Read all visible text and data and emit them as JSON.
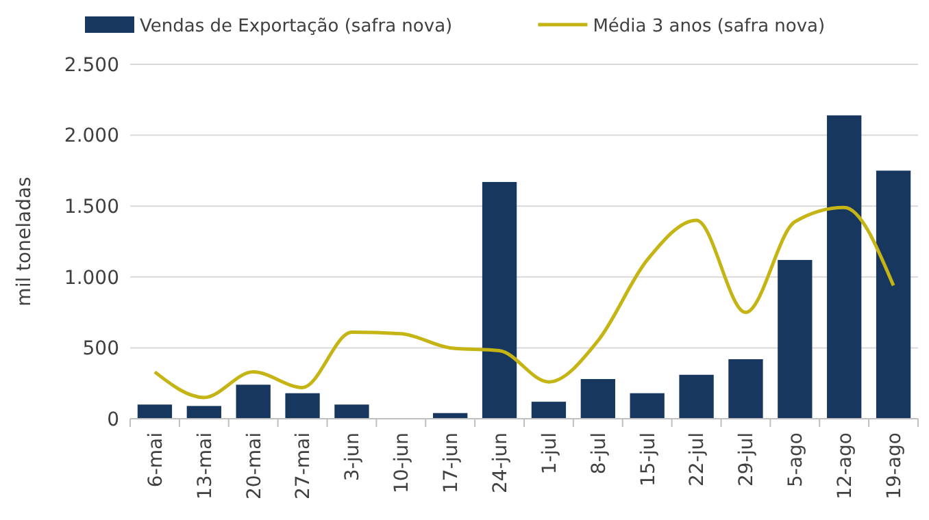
{
  "chart_data": {
    "type": "bar",
    "ylabel": "mil toneladas",
    "categories": [
      "6-mai",
      "13-mai",
      "20-mai",
      "27-mai",
      "3-jun",
      "10-jun",
      "17-jun",
      "24-jun",
      "1-jul",
      "8-jul",
      "15-jul",
      "22-jul",
      "29-jul",
      "5-ago",
      "12-ago",
      "19-ago"
    ],
    "series": [
      {
        "name": "Vendas de Exportação (safra nova)",
        "color": "#17375e",
        "values": [
          100,
          90,
          240,
          180,
          100,
          0,
          40,
          1670,
          120,
          280,
          180,
          310,
          420,
          1120,
          2140,
          1750
        ]
      },
      {
        "name": "Média 3 anos (safra nova)",
        "type": "line",
        "color": "#c4b414",
        "values": [
          330,
          150,
          330,
          220,
          610,
          600,
          500,
          480,
          260,
          550,
          1120,
          1400,
          750,
          1390,
          1490,
          940
        ]
      }
    ],
    "ylim": [
      0,
      2500
    ],
    "yticks": [
      0,
      {
        "value": 500,
        "label": "500"
      },
      {
        "value": 1000,
        "label": "1.000"
      },
      {
        "value": 1500,
        "label": "1.500"
      },
      {
        "value": 2000,
        "label": "2.000"
      },
      {
        "value": 2500,
        "label": "2.500"
      }
    ],
    "grid": "y",
    "legend": "top",
    "marker": "none",
    "line_style": "solid"
  }
}
